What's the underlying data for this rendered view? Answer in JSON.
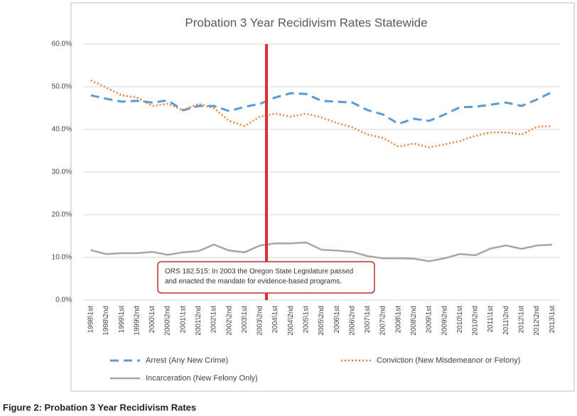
{
  "chart_data": {
    "type": "line",
    "title": "Probation 3 Year Recidivism Rates Statewide",
    "categories": [
      "1998\\1st",
      "1998\\2nd",
      "1999\\1st",
      "1999\\2nd",
      "2000\\1st",
      "2000\\2nd",
      "2001\\1st",
      "2001\\2nd",
      "2002\\1st",
      "2002\\2nd",
      "2003\\1st",
      "2003\\2nd",
      "2004\\1st",
      "2004\\2nd",
      "2005\\1st",
      "2005\\2nd",
      "2006\\1st",
      "2006\\2nd",
      "2007\\1st",
      "2007\\2nd",
      "2008\\1st",
      "2008\\2nd",
      "2009\\1st",
      "2009\\2nd",
      "2010\\1st",
      "2010\\2nd",
      "2011\\1st",
      "2011\\2nd",
      "2012\\1st",
      "2012\\2nd",
      "2013\\1st"
    ],
    "series": [
      {
        "name": "Arrest (Any New Crime)",
        "color": "#5b9bd5",
        "dash": "dashed",
        "values": [
          48,
          47.2,
          46.5,
          46.7,
          46.3,
          46.8,
          44.5,
          45.5,
          45.5,
          44.3,
          45.3,
          46,
          47.5,
          48.5,
          48.3,
          46.7,
          46.5,
          46.3,
          44.5,
          43.5,
          41.3,
          42.5,
          42,
          43.5,
          45.2,
          45.3,
          45.8,
          46.3,
          45.5,
          47,
          48.8
        ]
      },
      {
        "name": "Conviction (New Misdemeanor or Felony)",
        "color": "#ed7d31",
        "dash": "dotted",
        "values": [
          51.5,
          49.8,
          48,
          47.5,
          45.5,
          46,
          44.5,
          46,
          45,
          42,
          40.8,
          43,
          43.7,
          43,
          43.7,
          42.8,
          41.5,
          40.5,
          38.8,
          38,
          36,
          36.7,
          35.8,
          36.5,
          37.3,
          38.5,
          39.3,
          39.3,
          38.8,
          40.6,
          40.8
        ]
      },
      {
        "name": "Incarceration (New Felony Only)",
        "color": "#a5a5a5",
        "dash": "solid",
        "values": [
          11.7,
          10.8,
          11,
          11,
          11.3,
          10.6,
          11.2,
          11.5,
          13,
          11.6,
          11.2,
          12.8,
          13.3,
          13.3,
          13.5,
          11.8,
          11.6,
          11.3,
          10.3,
          9.8,
          9.8,
          9.7,
          9.1,
          9.8,
          10.8,
          10.5,
          12.1,
          12.8,
          12,
          12.8,
          13
        ]
      }
    ],
    "ylim": [
      0,
      60
    ],
    "yticks": [
      {
        "value": 0,
        "label": "0.0%"
      },
      {
        "value": 10,
        "label": "10.0%"
      },
      {
        "value": 20,
        "label": "20.0%"
      },
      {
        "value": 30,
        "label": "30.0%"
      },
      {
        "value": 40,
        "label": "40.0%"
      },
      {
        "value": 50,
        "label": "50.0%"
      },
      {
        "value": 60,
        "label": "60.0%"
      }
    ],
    "grid": true,
    "annotation": [
      "ORS 182.515: In 2003 the Oregon State Legislature passed",
      "and enacted the mandate for evidence-based programs."
    ],
    "caption": "Figure 2: Probation 3 Year Recidivism Rates"
  }
}
